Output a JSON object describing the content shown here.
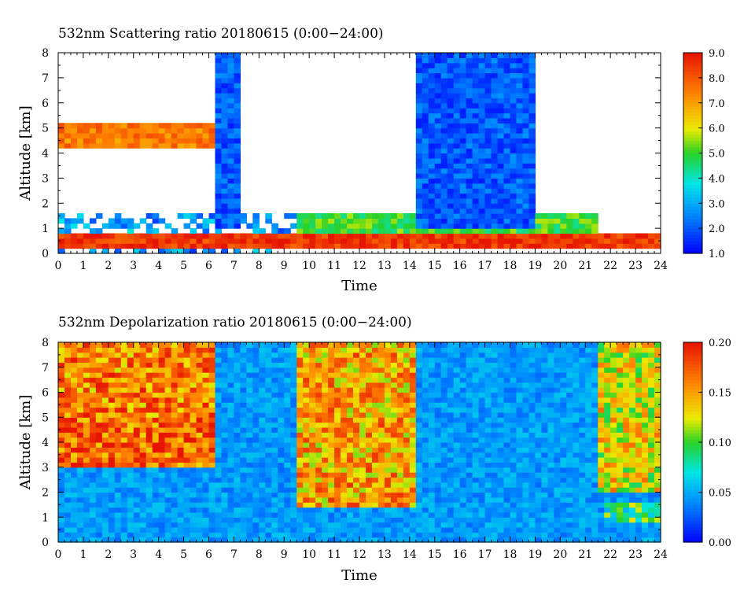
{
  "chart_data": [
    {
      "type": "heatmap",
      "title": "532nm Scattering ratio  20180615 (0:00−24:00)",
      "xlabel": "Time",
      "ylabel": "Altitude [km]",
      "xlim": [
        0,
        24
      ],
      "ylim": [
        0,
        8
      ],
      "x_ticks": [
        "0",
        "1",
        "2",
        "3",
        "4",
        "5",
        "6",
        "7",
        "8",
        "9",
        "10",
        "11",
        "12",
        "13",
        "14",
        "15",
        "16",
        "17",
        "18",
        "19",
        "20",
        "21",
        "22",
        "23",
        "24"
      ],
      "y_ticks": [
        "0",
        "1",
        "2",
        "3",
        "4",
        "5",
        "6",
        "7",
        "8"
      ],
      "colorbar": {
        "range": [
          1.0,
          9.0
        ],
        "tick_labels": [
          "1.0",
          "2.0",
          "3.0",
          "4.0",
          "5.0",
          "6.0",
          "7.0",
          "8.0",
          "9.0"
        ]
      },
      "features": [
        {
          "name": "boundary layer",
          "t": [
            0,
            24
          ],
          "z": [
            0.2,
            0.8
          ],
          "value": 8.5
        },
        {
          "name": "cloud layer",
          "t": [
            0,
            6.5
          ],
          "z": [
            4.2,
            5.2
          ],
          "value": 7.5
        },
        {
          "name": "elevated aerosol layer",
          "t": [
            9.5,
            21.5
          ],
          "z": [
            0.8,
            1.6
          ],
          "value": 5.0
        },
        {
          "name": "thick cloud",
          "t": [
            6.2,
            7.3
          ],
          "z": [
            1.0,
            8.0
          ],
          "value": 2.0
        },
        {
          "name": "thick cloud",
          "t": [
            14.3,
            18.9
          ],
          "z": [
            1.0,
            8.0
          ],
          "value": 2.0
        }
      ]
    },
    {
      "type": "heatmap",
      "title": "532nm Depolarization ratio  20180615 (0:00−24:00)",
      "xlabel": "Time",
      "ylabel": "Altitude [km]",
      "xlim": [
        0,
        24
      ],
      "ylim": [
        0,
        8
      ],
      "x_ticks": [
        "0",
        "1",
        "2",
        "3",
        "4",
        "5",
        "6",
        "7",
        "8",
        "9",
        "10",
        "11",
        "12",
        "13",
        "14",
        "15",
        "16",
        "17",
        "18",
        "19",
        "20",
        "21",
        "22",
        "23",
        "24"
      ],
      "y_ticks": [
        "0",
        "1",
        "2",
        "3",
        "4",
        "5",
        "6",
        "7",
        "8"
      ],
      "colorbar": {
        "range": [
          0.0,
          0.2
        ],
        "tick_labels": [
          "0.00",
          "0.05",
          "0.10",
          "0.15",
          "0.20"
        ]
      },
      "features": [
        {
          "name": "dust layer",
          "t": [
            0,
            6.3
          ],
          "z": [
            3.0,
            5.0
          ],
          "value": 0.17
        },
        {
          "name": "noisy upper region",
          "t": [
            0,
            6.3
          ],
          "z": [
            5.0,
            8.0
          ],
          "value": 0.16
        },
        {
          "name": "noisy upper region",
          "t": [
            9.5,
            14.2
          ],
          "z": [
            1.5,
            8.0
          ],
          "value": 0.15
        },
        {
          "name": "noisy upper region",
          "t": [
            21.5,
            24
          ],
          "z": [
            2.0,
            8.0
          ],
          "value": 0.13
        },
        {
          "name": "low layer",
          "t": [
            21.8,
            24
          ],
          "z": [
            0.9,
            1.7
          ],
          "value": 0.09
        }
      ]
    }
  ]
}
